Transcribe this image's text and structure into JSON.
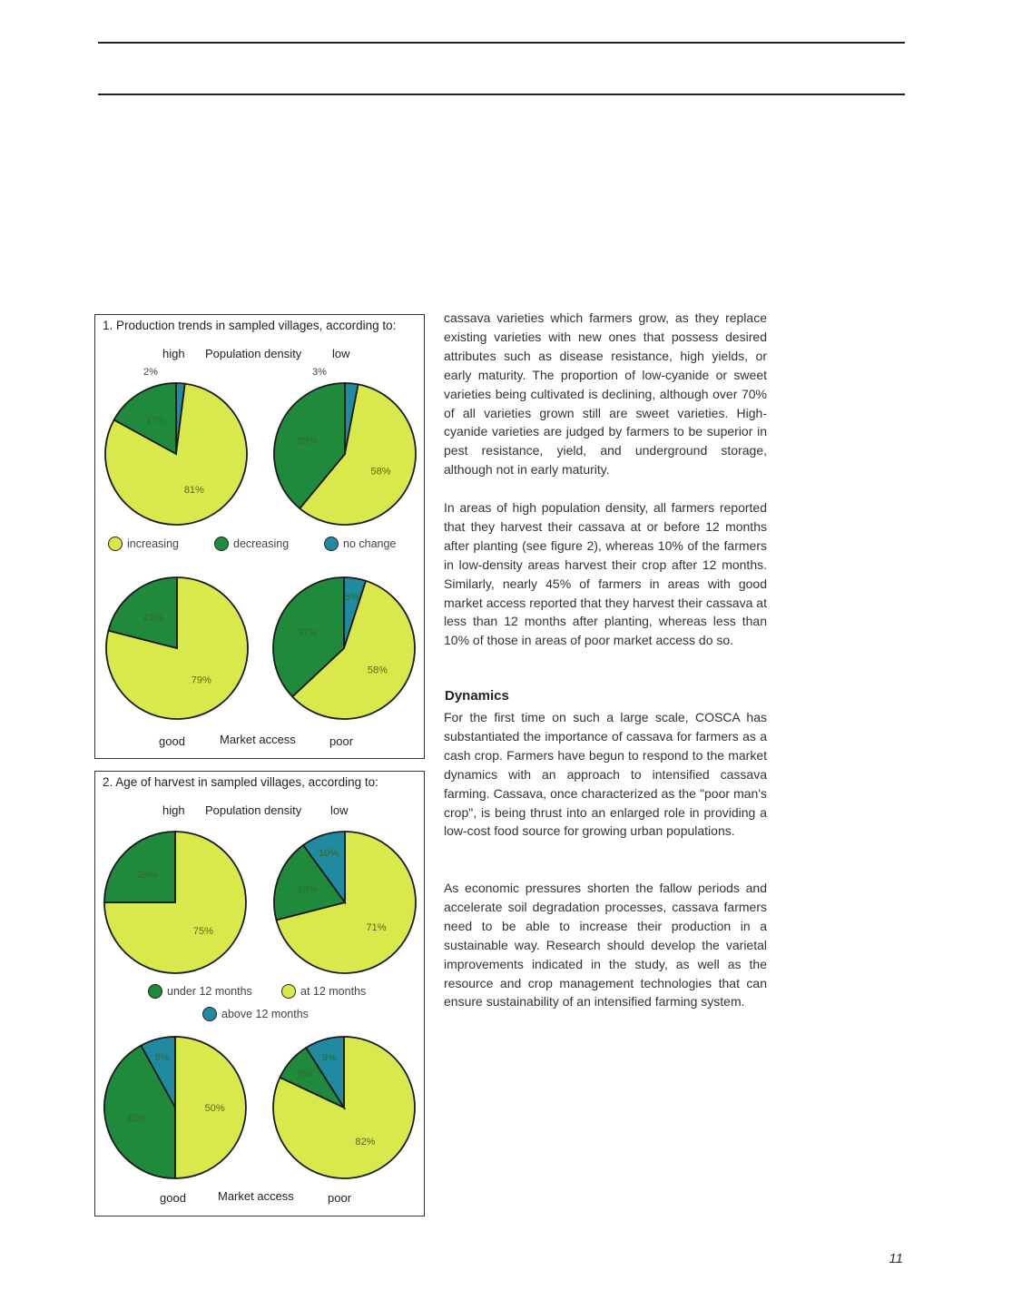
{
  "colors": {
    "increasing": "#d9e84a",
    "decreasing": "#1f8a3c",
    "no_change": "#1f8aa0",
    "outline": "#1a1a1a"
  },
  "figure1": {
    "title": "1. Production trends in sampled villages, according to:",
    "axis_top": {
      "left": "high",
      "center": "Population density",
      "right": "low"
    },
    "axis_bottom": {
      "left": "good",
      "center": "Market access",
      "right": "poor"
    },
    "legend": [
      {
        "label": "increasing",
        "color": "#d9e84a"
      },
      {
        "label": "decreasing",
        "color": "#1f8a3c"
      },
      {
        "label": "no change",
        "color": "#1f8aa0"
      }
    ]
  },
  "figure2": {
    "title": "2. Age of harvest in sampled villages, according to:",
    "axis_top": {
      "left": "high",
      "center": "Population density",
      "right": "low"
    },
    "axis_bottom": {
      "left": "good",
      "center": "Market access",
      "right": "poor"
    },
    "legend": [
      {
        "label": "under 12 months",
        "color": "#1f8a3c"
      },
      {
        "label": "at 12 months",
        "color": "#d9e84a"
      },
      {
        "label": "above 12 months",
        "color": "#1f8aa0"
      }
    ]
  },
  "chart_data": [
    {
      "type": "pie",
      "figure": 1,
      "panel": "high population density",
      "callout": "2%",
      "slices": [
        {
          "label": "no change",
          "value": 2,
          "text": ""
        },
        {
          "label": "increasing",
          "value": 81,
          "text": "81%"
        },
        {
          "label": "decreasing",
          "value": 17,
          "text": "17%"
        }
      ]
    },
    {
      "type": "pie",
      "figure": 1,
      "panel": "low population density",
      "callout": "3%",
      "slices": [
        {
          "label": "no change",
          "value": 3,
          "text": ""
        },
        {
          "label": "increasing",
          "value": 58,
          "text": "58%"
        },
        {
          "label": "decreasing",
          "value": 39,
          "text": "39%"
        }
      ]
    },
    {
      "type": "pie",
      "figure": 1,
      "panel": "good market access",
      "slices": [
        {
          "label": "increasing",
          "value": 79,
          "text": "79%"
        },
        {
          "label": "decreasing",
          "value": 21,
          "text": "21%"
        }
      ]
    },
    {
      "type": "pie",
      "figure": 1,
      "panel": "poor market access",
      "slices": [
        {
          "label": "no change",
          "value": 5,
          "text": "5%"
        },
        {
          "label": "increasing",
          "value": 58,
          "text": "58%"
        },
        {
          "label": "decreasing",
          "value": 37,
          "text": "37%"
        }
      ]
    },
    {
      "type": "pie",
      "figure": 2,
      "panel": "high population density",
      "slices": [
        {
          "label": "at 12 months",
          "value": 75,
          "text": "75%"
        },
        {
          "label": "under 12 months",
          "value": 25,
          "text": "25%"
        }
      ]
    },
    {
      "type": "pie",
      "figure": 2,
      "panel": "low population density",
      "slices": [
        {
          "label": "at 12 months",
          "value": 71,
          "text": "71%"
        },
        {
          "label": "under 12 months",
          "value": 19,
          "text": "19%"
        },
        {
          "label": "above 12 months",
          "value": 10,
          "text": "10%"
        }
      ]
    },
    {
      "type": "pie",
      "figure": 2,
      "panel": "good market access",
      "slices": [
        {
          "label": "at 12 months",
          "value": 50,
          "text": "50%"
        },
        {
          "label": "under 12 months",
          "value": 42,
          "text": "42%"
        },
        {
          "label": "above 12 months",
          "value": 8,
          "text": "8%"
        }
      ]
    },
    {
      "type": "pie",
      "figure": 2,
      "panel": "poor market access",
      "slices": [
        {
          "label": "at 12 months",
          "value": 82,
          "text": "82%"
        },
        {
          "label": "under 12 months",
          "value": 9,
          "text": "9%"
        },
        {
          "label": "above 12 months",
          "value": 9,
          "text": "9%"
        }
      ]
    }
  ],
  "body": {
    "para1": "cassava varieties which farmers grow, as they replace existing varieties with new ones that possess desired attributes such as disease resistance, high yields, or early maturity. The proportion of low-cyanide or sweet varieties being cultivated is declining, although over 70% of all varieties grown still are sweet varieties. High-cyanide varieties are judged by farmers to be superior in pest resistance, yield, and underground storage, although not in early maturity.",
    "para2": "In areas of high population density, all farmers reported that they harvest their cassava at or before 12 months after planting (see figure 2), whereas 10% of the farmers in low-density areas harvest their crop after 12 months. Similarly, nearly 45% of farmers in areas with good market access reported that they harvest their cassava at less than 12 months after planting, whereas less than 10% of those in areas of poor market access do so.",
    "heading": "Dynamics",
    "para3": "For the first time on such a large scale, COSCA has substantiated the importance of cassava for farmers as a cash crop. Farmers have begun to respond to the market dynamics with an approach to intensified cassava farming. Cassava, once characterized as the \"poor man's crop\", is being thrust into an enlarged role in providing a low-cost food source for growing urban populations.",
    "para4": "As economic pressures shorten the fallow periods and accelerate soil degradation processes, cassava farmers need to be able to increase their production in a sustainable way. Research should develop the varietal improvements indicated in the study, as well as the resource and crop management technologies that can ensure sustainability of an intensified farming system."
  },
  "page_number": "11"
}
